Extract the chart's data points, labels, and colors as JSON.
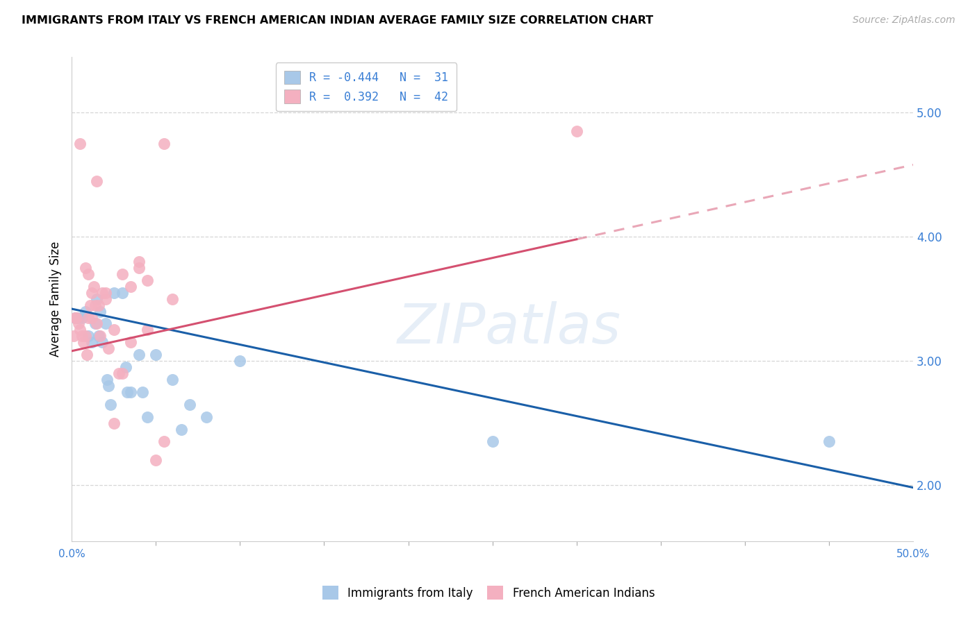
{
  "title": "IMMIGRANTS FROM ITALY VS FRENCH AMERICAN INDIAN AVERAGE FAMILY SIZE CORRELATION CHART",
  "source": "Source: ZipAtlas.com",
  "ylabel": "Average Family Size",
  "background_color": "#ffffff",
  "blue_R": -0.444,
  "blue_N": 31,
  "pink_R": 0.392,
  "pink_N": 42,
  "blue_label": "Immigrants from Italy",
  "pink_label": "French American Indians",
  "blue_color": "#a8c8e8",
  "pink_color": "#f4b0c0",
  "blue_line_color": "#1a5fa8",
  "pink_line_color": "#d45070",
  "blue_points_x": [
    0.2,
    0.4,
    0.6,
    0.8,
    1.0,
    1.2,
    1.4,
    1.5,
    1.6,
    1.7,
    1.8,
    2.0,
    2.1,
    2.2,
    2.3,
    2.5,
    3.0,
    3.2,
    3.3,
    3.5,
    4.0,
    4.2,
    4.5,
    5.0,
    6.0,
    6.5,
    7.0,
    8.0,
    10.0,
    25.0,
    45.0
  ],
  "blue_points_y": [
    3.35,
    3.35,
    3.35,
    3.4,
    3.2,
    3.15,
    3.3,
    3.5,
    3.2,
    3.4,
    3.15,
    3.3,
    2.85,
    2.8,
    2.65,
    3.55,
    3.55,
    2.95,
    2.75,
    2.75,
    3.05,
    2.75,
    2.55,
    3.05,
    2.85,
    2.45,
    2.65,
    2.55,
    3.0,
    2.35,
    2.35
  ],
  "pink_points_x": [
    0.1,
    0.2,
    0.3,
    0.4,
    0.5,
    0.6,
    0.7,
    0.8,
    0.9,
    1.0,
    1.1,
    1.2,
    1.3,
    1.4,
    1.5,
    1.6,
    1.7,
    1.8,
    2.0,
    2.2,
    2.5,
    2.8,
    3.0,
    3.5,
    4.0,
    4.5,
    5.0,
    5.5,
    6.0,
    1.5,
    0.5,
    0.8,
    1.0,
    1.2,
    2.0,
    2.5,
    3.0,
    3.5,
    4.0,
    4.5,
    5.5,
    30.0
  ],
  "pink_points_y": [
    3.2,
    3.35,
    3.35,
    3.3,
    3.25,
    3.2,
    3.15,
    3.2,
    3.05,
    3.35,
    3.45,
    3.55,
    3.6,
    3.45,
    3.3,
    3.45,
    3.2,
    3.55,
    3.55,
    3.1,
    3.25,
    2.9,
    2.9,
    3.15,
    3.8,
    3.25,
    2.2,
    2.35,
    3.5,
    4.45,
    4.75,
    3.75,
    3.7,
    3.35,
    3.5,
    2.5,
    3.7,
    3.6,
    3.75,
    3.65,
    4.75,
    4.85
  ],
  "xlim": [
    0,
    50
  ],
  "ylim_bottom": 1.55,
  "ylim_top": 5.45,
  "right_yticks": [
    2.0,
    3.0,
    4.0,
    5.0
  ],
  "blue_trend_x0": 0,
  "blue_trend_x1": 50,
  "blue_trend_y0": 3.42,
  "blue_trend_y1": 1.98,
  "pink_trend_x0": 0,
  "pink_trend_x1": 50,
  "pink_trend_y0": 3.08,
  "pink_trend_y1": 4.58,
  "pink_solid_end_x": 30,
  "grid_yticks": [
    2.0,
    3.0,
    4.0,
    5.0
  ],
  "grid_color": "#cccccc",
  "xtick_minor_count": 9,
  "legend_blue_text": "R = -0.444   N =  31",
  "legend_pink_text": "R =  0.392   N =  42"
}
